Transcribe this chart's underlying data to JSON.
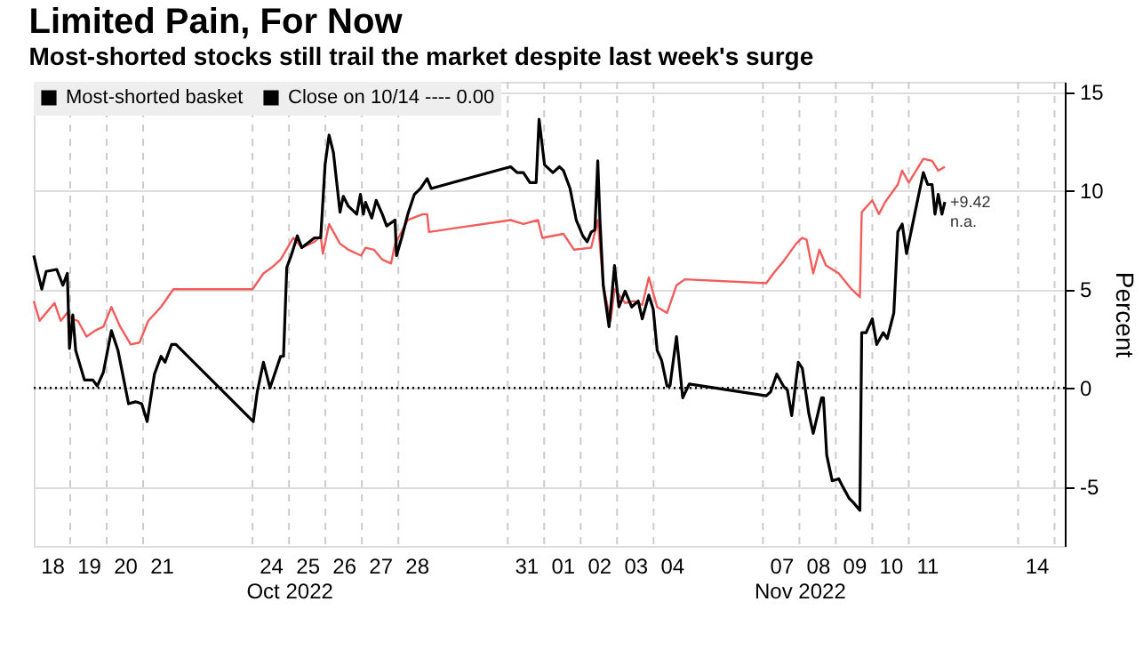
{
  "chart_data": {
    "type": "line",
    "title": "Limited Pain, For Now",
    "subtitle": "Most-shorted stocks still trail the market despite last week's surge",
    "ylabel": "Percent",
    "xlim": [
      "2022-10-18",
      "2022-11-15T06:43"
    ],
    "ylim": [
      -8,
      15.5
    ],
    "yticks": [
      -5,
      0,
      5,
      10,
      15
    ],
    "xticks": [
      {
        "value": "2022-10-18T12:00",
        "label": "18"
      },
      {
        "value": "2022-10-19",
        "label": null
      },
      {
        "value": "2022-10-19T12:00",
        "label": "19"
      },
      {
        "value": "2022-10-20",
        "label": null
      },
      {
        "value": "2022-10-20T12:00",
        "label": "20"
      },
      {
        "value": "2022-10-21",
        "label": null
      },
      {
        "value": "2022-10-21T12:00",
        "label": "21"
      },
      {
        "value": "2022-10-24",
        "label": null
      },
      {
        "value": "2022-10-24T12:00",
        "label": "24"
      },
      {
        "value": "2022-10-25",
        "label": null
      },
      {
        "value": "2022-10-25T12:00",
        "label": "25"
      },
      {
        "value": "2022-10-26",
        "label": null
      },
      {
        "value": "2022-10-26T12:00",
        "label": "26"
      },
      {
        "value": "2022-10-27",
        "label": null
      },
      {
        "value": "2022-10-27T12:00",
        "label": "27"
      },
      {
        "value": "2022-10-28",
        "label": null
      },
      {
        "value": "2022-10-28T12:00",
        "label": "28"
      },
      {
        "value": "2022-10-31",
        "label": null
      },
      {
        "value": "2022-10-31T12:00",
        "label": "31"
      },
      {
        "value": "2022-11-01",
        "label": null
      },
      {
        "value": "2022-11-01T12:00",
        "label": "01"
      },
      {
        "value": "2022-11-02",
        "label": null
      },
      {
        "value": "2022-11-02T12:00",
        "label": "02"
      },
      {
        "value": "2022-11-03",
        "label": null
      },
      {
        "value": "2022-11-03T12:00",
        "label": "03"
      },
      {
        "value": "2022-11-04",
        "label": null
      },
      {
        "value": "2022-11-04T12:00",
        "label": "04"
      },
      {
        "value": "2022-11-07",
        "label": null
      },
      {
        "value": "2022-11-07T12:00",
        "label": "07"
      },
      {
        "value": "2022-11-08",
        "label": null
      },
      {
        "value": "2022-11-08T12:00",
        "label": "08"
      },
      {
        "value": "2022-11-09",
        "label": null
      },
      {
        "value": "2022-11-09T12:00",
        "label": "09"
      },
      {
        "value": "2022-11-10",
        "label": null
      },
      {
        "value": "2022-11-10T12:00",
        "label": "10"
      },
      {
        "value": "2022-11-11",
        "label": null
      },
      {
        "value": "2022-11-11T12:00",
        "label": "11"
      },
      {
        "value": "2022-11-14",
        "label": null
      },
      {
        "value": "2022-11-14T12:00",
        "label": "14"
      },
      {
        "value": "2022-11-15",
        "label": null
      }
    ],
    "x2lim": [
      "2022-10-18",
      "2022-11-15T06:43"
    ],
    "x2ticks": [
      {
        "value": "2022-10-25",
        "label": "Oct 2022"
      },
      {
        "value": "2022-11-08",
        "label": "Nov 2022"
      }
    ],
    "grid": true,
    "legend": "top left",
    "marker": "none",
    "line_style": "solid",
    "ref_lines": [
      {
        "axis": "y",
        "value": 0,
        "label": "Close on 10/14 ---- 0.00",
        "line_style": "dotted",
        "color": "#000000"
      }
    ],
    "annotations": [
      {
        "text": "+9.42",
        "x": "2022-11-11T23:46",
        "y": 9.42
      },
      {
        "text": "n.a.",
        "x": "2022-11-11T23:46",
        "y": 9.42
      }
    ],
    "series": [
      {
        "name": "Most-shorted basket",
        "color": "#000000",
        "x": [
          "2022-10-18T00:00",
          "2022-10-18T02:24",
          "2022-10-18T05:17",
          "2022-10-18T08:10",
          "2022-10-18T15:07",
          "2022-10-18T19:12",
          "2022-10-18T22:05",
          "2022-10-18T23:31",
          "2022-10-19T01:41",
          "2022-10-19T03:36",
          "2022-10-19T09:22",
          "2022-10-19T14:53",
          "2022-10-19T17:46",
          "2022-10-19T21:50",
          "2022-10-20T03:07",
          "2022-10-20T07:26",
          "2022-10-20T14:24",
          "2022-10-20T18:58",
          "2022-10-20T23:02",
          "2022-10-21T02:38",
          "2022-10-21T07:26",
          "2022-10-21T11:46",
          "2022-10-21T14:24",
          "2022-10-21T18:43",
          "2022-10-21T21:36",
          "2022-10-24T00:29",
          "2022-10-24T03:07",
          "2022-10-24T07:12",
          "2022-10-24T11:31",
          "2022-10-24T18:29",
          "2022-10-24T20:24",
          "2022-10-24T22:34",
          "2022-10-25T01:26",
          "2022-10-25T05:31",
          "2022-10-25T08:24",
          "2022-10-25T16:48",
          "2022-10-25T20:53",
          "2022-10-25T23:46",
          "2022-10-26T02:24",
          "2022-10-26T05:17",
          "2022-10-26T09:36",
          "2022-10-26T11:46",
          "2022-10-26T15:07",
          "2022-10-26T20:38",
          "2022-10-26T23:02",
          "2022-10-27T00:58",
          "2022-10-27T02:24",
          "2022-10-27T06:29",
          "2022-10-27T09:22",
          "2022-10-27T13:26",
          "2022-10-27T16:19",
          "2022-10-27T21:50",
          "2022-10-27T22:48",
          "2022-10-28T02:10",
          "2022-10-28T06:14",
          "2022-10-28T10:34",
          "2022-10-28T14:38",
          "2022-10-28T18:58",
          "2022-10-28T21:36",
          "2022-10-31T01:55",
          "2022-10-31T06:14",
          "2022-10-31T10:19",
          "2022-10-31T14:38",
          "2022-10-31T18:43",
          "2022-10-31T20:38",
          "2022-11-01T00:14",
          "2022-11-01T05:46",
          "2022-11-01T10:05",
          "2022-11-01T12:43",
          "2022-11-01T17:02",
          "2022-11-01T21:07",
          "2022-11-02T01:26",
          "2022-11-02T04:19",
          "2022-11-02T06:58",
          "2022-11-02T09:22",
          "2022-11-02T11:17",
          "2022-11-02T12:43",
          "2022-11-02T14:53",
          "2022-11-02T18:43",
          "2022-11-02T22:19",
          "2022-11-03T01:12",
          "2022-11-03T05:17",
          "2022-11-03T09:36",
          "2022-11-03T13:55",
          "2022-11-03T16:34",
          "2022-11-03T20:53",
          "2022-11-03T23:46",
          "2022-11-04T02:24",
          "2022-11-04T05:17",
          "2022-11-04T08:53",
          "2022-11-04T10:48",
          "2022-11-04T15:07",
          "2022-11-04T19:12",
          "2022-11-04T23:31",
          "2022-11-07T02:10",
          "2022-11-07T05:02",
          "2022-11-07T09:07",
          "2022-11-07T13:26",
          "2022-11-07T16:05",
          "2022-11-07T18:58",
          "2022-11-07T23:17",
          "2022-11-08T01:55",
          "2022-11-08T06:14",
          "2022-11-08T09:07",
          "2022-11-08T14:38",
          "2022-11-08T15:50",
          "2022-11-08T18:00",
          "2022-11-08T21:36",
          "2022-11-09T01:55",
          "2022-11-09T04:34",
          "2022-11-09T08:53",
          "2022-11-09T11:31",
          "2022-11-09T15:50",
          "2022-11-09T17:02",
          "2022-11-09T19:55",
          "2022-11-10T00:00",
          "2022-11-10T02:53",
          "2022-11-10T07:12",
          "2022-11-10T09:50",
          "2022-11-10T14:10",
          "2022-11-10T16:48",
          "2022-11-10T19:41",
          "2022-11-10T22:34",
          "2022-11-11T05:31",
          "2022-11-11T09:36",
          "2022-11-11T12:29",
          "2022-11-11T15:22",
          "2022-11-11T17:17",
          "2022-11-11T19:26",
          "2022-11-11T21:50",
          "2022-11-11T23:46"
        ],
        "values": [
          6.7,
          5.9,
          5.0,
          5.9,
          6.0,
          5.2,
          5.8,
          2.0,
          3.7,
          1.9,
          0.4,
          0.4,
          0.1,
          0.8,
          2.9,
          1.9,
          -0.8,
          -0.7,
          -0.8,
          -1.7,
          0.7,
          1.6,
          1.3,
          2.2,
          2.2,
          -1.7,
          -0.2,
          1.3,
          0,
          1.6,
          1.6,
          6.1,
          6.7,
          7.7,
          7.1,
          7.6,
          7.6,
          11.3,
          12.8,
          11.9,
          8.9,
          9.7,
          9.2,
          8.8,
          9.8,
          8.8,
          9.4,
          8.6,
          9.5,
          8.8,
          8.2,
          8.5,
          6.7,
          7.6,
          8.8,
          9.8,
          10.1,
          10.6,
          10.1,
          11.2,
          10.9,
          10.9,
          10.4,
          10.4,
          13.6,
          11.3,
          10.9,
          11.2,
          11.0,
          10.1,
          8.5,
          7.7,
          7.4,
          7.9,
          8.0,
          11.5,
          8.5,
          5.2,
          3.1,
          6.2,
          4.1,
          4.9,
          4.1,
          4.4,
          3.5,
          4.7,
          4.0,
          1.9,
          1.4,
          0.1,
          0.1,
          2.6,
          -0.5,
          0.2,
          -0.4,
          -0.2,
          0.7,
          0.1,
          -0.1,
          -1.4,
          1.3,
          1.0,
          -1.3,
          -2.3,
          -0.5,
          -0.5,
          -3.4,
          -4.7,
          -4.6,
          -5.0,
          -5.6,
          -5.8,
          -6.2,
          2.8,
          2.8,
          3.5,
          2.2,
          2.8,
          2.5,
          3.8,
          7.9,
          8.3,
          6.8,
          9.4,
          10.9,
          10.3,
          10.3,
          8.8,
          9.8,
          8.8,
          9.42
        ]
      },
      {
        "color": "#f25c5c",
        "x": [
          "2022-10-18T00:00",
          "2022-10-18T03:50",
          "2022-10-18T08:10",
          "2022-10-18T13:41",
          "2022-10-18T17:46",
          "2022-10-18T22:05",
          "2022-10-19T00:58",
          "2022-10-19T05:02",
          "2022-10-19T10:48",
          "2022-10-19T16:19",
          "2022-10-19T21:50",
          "2022-10-20T03:07",
          "2022-10-20T08:53",
          "2022-10-20T15:50",
          "2022-10-20T21:36",
          "2022-10-21T03:22",
          "2022-10-21T11:46",
          "2022-10-21T19:55",
          "2022-10-24T00:00",
          "2022-10-24T07:12",
          "2022-10-24T12:43",
          "2022-10-24T18:29",
          "2022-10-25T02:53",
          "2022-10-25T08:24",
          "2022-10-25T16:48",
          "2022-10-25T20:53",
          "2022-10-25T22:19",
          "2022-10-26T02:24",
          "2022-10-26T09:36",
          "2022-10-26T15:07",
          "2022-10-26T23:31",
          "2022-10-27T02:24",
          "2022-10-27T07:55",
          "2022-10-27T13:26",
          "2022-10-27T19:12",
          "2022-10-27T21:50",
          "2022-10-28T00:43",
          "2022-10-28T06:14",
          "2022-10-28T16:05",
          "2022-10-28T18:58",
          "2022-10-28T20:10",
          "2022-10-31T01:55",
          "2022-10-31T10:19",
          "2022-10-31T19:55",
          "2022-10-31T22:48",
          "2022-11-01T12:43",
          "2022-11-01T19:41",
          "2022-11-02T06:58",
          "2022-11-02T11:17",
          "2022-11-02T14:53",
          "2022-11-02T19:41",
          "2022-11-02T22:19",
          "2022-11-03T05:17",
          "2022-11-03T11:02",
          "2022-11-03T16:34",
          "2022-11-03T20:53",
          "2022-11-04T02:24",
          "2022-11-04T08:53",
          "2022-11-04T15:07",
          "2022-11-04T20:38",
          "2022-11-07T02:10",
          "2022-11-07T07:55",
          "2022-11-07T13:26",
          "2022-11-07T21:50",
          "2022-11-08T01:55",
          "2022-11-08T04:48",
          "2022-11-08T09:07",
          "2022-11-08T13:12",
          "2022-11-08T17:31",
          "2022-11-09T01:55",
          "2022-11-09T10:19",
          "2022-11-09T15:50",
          "2022-11-09T17:02",
          "2022-11-10T00:00",
          "2022-11-10T04:19",
          "2022-11-10T08:24",
          "2022-11-10T16:48",
          "2022-11-10T19:41",
          "2022-11-11T00:00",
          "2022-11-11T09:36",
          "2022-11-11T15:22",
          "2022-11-11T19:26",
          "2022-11-11T23:46"
        ],
        "values": [
          4.4,
          3.4,
          3.8,
          4.3,
          3.4,
          3.8,
          3.5,
          3.4,
          2.6,
          2.9,
          3.1,
          4.1,
          3.1,
          2.2,
          2.3,
          3.4,
          4.1,
          5.0,
          5.0,
          5.8,
          6.1,
          6.5,
          7.6,
          7.1,
          7.4,
          7.7,
          6.8,
          8.3,
          7.3,
          7.0,
          6.7,
          7.1,
          7.0,
          6.5,
          6.3,
          7.3,
          7.7,
          8.5,
          8.8,
          8.8,
          7.9,
          8.5,
          8.3,
          8.5,
          7.6,
          7.8,
          7.0,
          7.1,
          8.5,
          5.2,
          3.4,
          5.0,
          4.3,
          4.4,
          4.2,
          5.6,
          4.1,
          3.8,
          5.2,
          5.5,
          5.3,
          5.9,
          6.4,
          7.3,
          7.6,
          7.5,
          5.8,
          7.0,
          6.2,
          5.8,
          5.0,
          4.6,
          8.9,
          9.5,
          8.8,
          9.4,
          10.3,
          11.0,
          10.4,
          11.6,
          11.5,
          11.0,
          11.2
        ]
      }
    ]
  }
}
